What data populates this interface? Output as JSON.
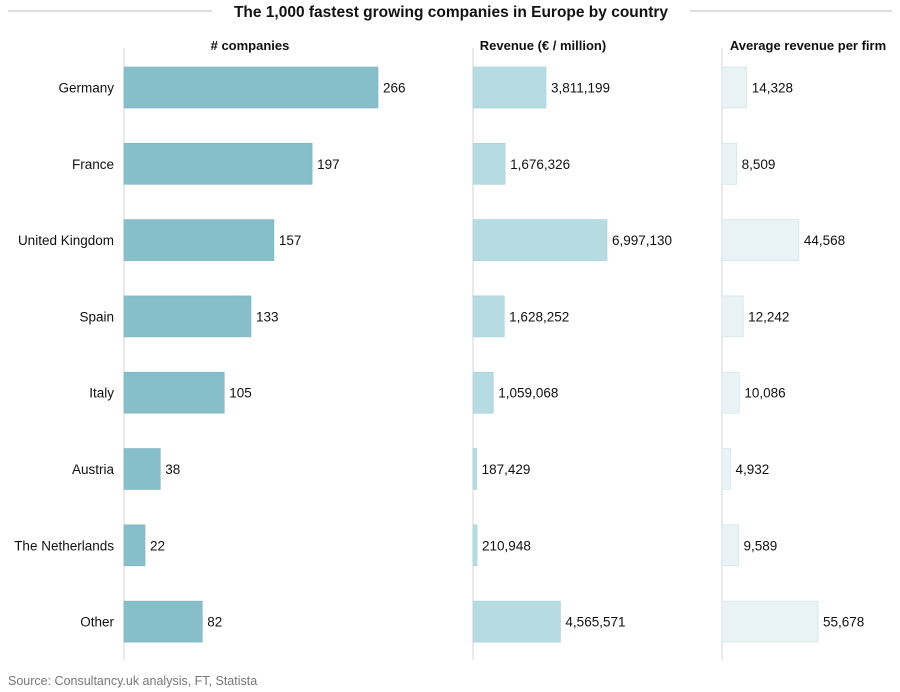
{
  "chart_data": {
    "type": "bar",
    "orientation": "horizontal",
    "title": "The 1,000 fastest growing companies in Europe by country",
    "categories": [
      "Germany",
      "France",
      "United Kingdom",
      "Spain",
      "Italy",
      "Austria",
      "The Netherlands",
      "Other"
    ],
    "series": [
      {
        "name": "# companies",
        "values": [
          266,
          197,
          157,
          133,
          105,
          38,
          22,
          82
        ],
        "labels": [
          "266",
          "197",
          "157",
          "133",
          "105",
          "38",
          "22",
          "82"
        ],
        "color": "#86bfc9"
      },
      {
        "name": "Revenue (€ / million)",
        "values": [
          3811199,
          1676326,
          6997130,
          1628252,
          1059068,
          187429,
          210948,
          4565571
        ],
        "labels": [
          "3,811,199",
          "1,676,326",
          "6,997,130",
          "1,628,252",
          "1,059,068",
          "187,429",
          "210,948",
          "4,565,571"
        ],
        "color": "#b7dbe3"
      },
      {
        "name": "Average revenue per firm",
        "values": [
          14328,
          8509,
          44568,
          12242,
          10086,
          4932,
          9589,
          55678
        ],
        "labels": [
          "14,328",
          "8,509",
          "44,568",
          "12,242",
          "10,086",
          "4,932",
          "9,589",
          "55,678"
        ],
        "color": "#e9f2f4"
      }
    ],
    "grid": false,
    "legend": "none"
  },
  "source": "Source: Consultancy.uk analysis, FT, Statista"
}
